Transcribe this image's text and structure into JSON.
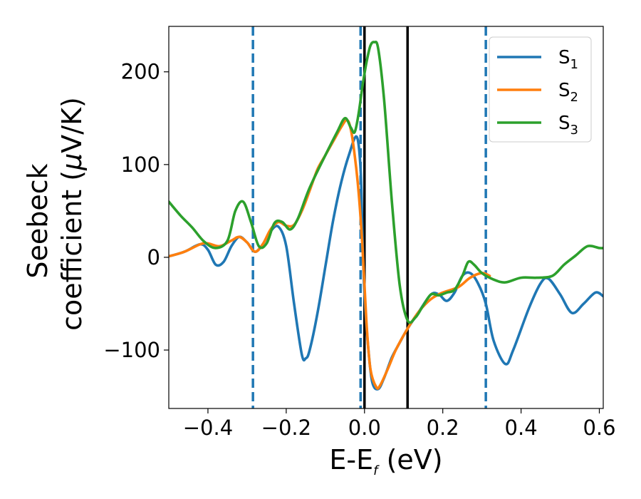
{
  "chart_data": {
    "type": "line",
    "xlabel_main": "E-E",
    "xlabel_sub": "f",
    "xlabel_unit": " (eV)",
    "ylabel_line1": "Seebeck",
    "ylabel_line2_prefix": "coefficient  (",
    "ylabel_mu": "μ",
    "ylabel_line2_suffix": "V/K)",
    "xlim": [
      -0.5,
      0.61
    ],
    "ylim": [
      -163,
      249
    ],
    "xticks": [
      -0.4,
      -0.2,
      0.0,
      0.2,
      0.4,
      0.6
    ],
    "xtick_labels": [
      "−0.4",
      "−0.2",
      "0.0",
      "0.2",
      "0.4",
      "0.6"
    ],
    "yticks": [
      -100,
      0,
      100,
      200
    ],
    "ytick_labels": [
      "−100",
      "0",
      "100",
      "200"
    ],
    "vlines_solid": [
      0.0,
      0.11
    ],
    "vlines_dashed": [
      -0.285,
      -0.01,
      0.31
    ],
    "legend_position": "top-right",
    "series": [
      {
        "name": "S",
        "sub": "1",
        "color": "#1f77b4",
        "points": [
          [
            -0.5,
            1
          ],
          [
            -0.46,
            6
          ],
          [
            -0.42,
            14
          ],
          [
            -0.4,
            8
          ],
          [
            -0.38,
            -8
          ],
          [
            -0.36,
            -5
          ],
          [
            -0.34,
            12
          ],
          [
            -0.32,
            22
          ],
          [
            -0.3,
            16
          ],
          [
            -0.28,
            6
          ],
          [
            -0.26,
            14
          ],
          [
            -0.24,
            28
          ],
          [
            -0.22,
            33
          ],
          [
            -0.2,
            12
          ],
          [
            -0.18,
            -50
          ],
          [
            -0.16,
            -105
          ],
          [
            -0.15,
            -109
          ],
          [
            -0.14,
            -100
          ],
          [
            -0.12,
            -60
          ],
          [
            -0.1,
            -10
          ],
          [
            -0.08,
            40
          ],
          [
            -0.06,
            80
          ],
          [
            -0.04,
            110
          ],
          [
            -0.02,
            130
          ],
          [
            -0.01,
            95
          ],
          [
            -0.005,
            20
          ],
          [
            0.0,
            -40
          ],
          [
            0.01,
            -100
          ],
          [
            0.02,
            -135
          ],
          [
            0.035,
            -142
          ],
          [
            0.05,
            -130
          ],
          [
            0.07,
            -108
          ],
          [
            0.09,
            -92
          ],
          [
            0.11,
            -77
          ],
          [
            0.14,
            -58
          ],
          [
            0.17,
            -40
          ],
          [
            0.19,
            -40
          ],
          [
            0.21,
            -47
          ],
          [
            0.23,
            -38
          ],
          [
            0.25,
            -20
          ],
          [
            0.27,
            -17
          ],
          [
            0.29,
            -28
          ],
          [
            0.31,
            -50
          ],
          [
            0.33,
            -90
          ],
          [
            0.36,
            -115
          ],
          [
            0.38,
            -100
          ],
          [
            0.42,
            -55
          ],
          [
            0.45,
            -28
          ],
          [
            0.47,
            -23
          ],
          [
            0.5,
            -40
          ],
          [
            0.53,
            -60
          ],
          [
            0.56,
            -50
          ],
          [
            0.59,
            -38
          ],
          [
            0.61,
            -42
          ]
        ]
      },
      {
        "name": "S",
        "sub": "2",
        "color": "#ff7f0e",
        "points": [
          [
            -0.5,
            1
          ],
          [
            -0.46,
            6
          ],
          [
            -0.42,
            14
          ],
          [
            -0.4,
            15
          ],
          [
            -0.37,
            12
          ],
          [
            -0.34,
            18
          ],
          [
            -0.32,
            22
          ],
          [
            -0.3,
            16
          ],
          [
            -0.28,
            6
          ],
          [
            -0.26,
            14
          ],
          [
            -0.24,
            30
          ],
          [
            -0.22,
            38
          ],
          [
            -0.2,
            34
          ],
          [
            -0.18,
            35
          ],
          [
            -0.16,
            50
          ],
          [
            -0.14,
            72
          ],
          [
            -0.12,
            95
          ],
          [
            -0.1,
            110
          ],
          [
            -0.08,
            125
          ],
          [
            -0.06,
            140
          ],
          [
            -0.045,
            148
          ],
          [
            -0.035,
            138
          ],
          [
            -0.025,
            110
          ],
          [
            -0.015,
            70
          ],
          [
            -0.005,
            10
          ],
          [
            0.005,
            -70
          ],
          [
            0.015,
            -120
          ],
          [
            0.03,
            -140
          ],
          [
            0.04,
            -138
          ],
          [
            0.06,
            -120
          ],
          [
            0.08,
            -100
          ],
          [
            0.11,
            -77
          ],
          [
            0.14,
            -58
          ],
          [
            0.17,
            -45
          ],
          [
            0.2,
            -38
          ],
          [
            0.24,
            -32
          ],
          [
            0.27,
            -22
          ],
          [
            0.3,
            -17
          ],
          [
            0.32,
            -20
          ]
        ]
      },
      {
        "name": "S",
        "sub": "3",
        "color": "#2ca02c",
        "points": [
          [
            -0.5,
            60
          ],
          [
            -0.47,
            45
          ],
          [
            -0.44,
            32
          ],
          [
            -0.41,
            17
          ],
          [
            -0.38,
            10
          ],
          [
            -0.35,
            18
          ],
          [
            -0.33,
            50
          ],
          [
            -0.31,
            60
          ],
          [
            -0.29,
            38
          ],
          [
            -0.27,
            12
          ],
          [
            -0.25,
            15
          ],
          [
            -0.23,
            37
          ],
          [
            -0.21,
            38
          ],
          [
            -0.19,
            30
          ],
          [
            -0.17,
            42
          ],
          [
            -0.14,
            75
          ],
          [
            -0.1,
            110
          ],
          [
            -0.07,
            135
          ],
          [
            -0.05,
            150
          ],
          [
            -0.035,
            140
          ],
          [
            -0.025,
            135
          ],
          [
            -0.015,
            155
          ],
          [
            -0.005,
            185
          ],
          [
            0.005,
            210
          ],
          [
            0.015,
            228
          ],
          [
            0.025,
            232
          ],
          [
            0.035,
            225
          ],
          [
            0.05,
            170
          ],
          [
            0.07,
            60
          ],
          [
            0.09,
            -30
          ],
          [
            0.11,
            -68
          ],
          [
            0.13,
            -65
          ],
          [
            0.15,
            -52
          ],
          [
            0.17,
            -40
          ],
          [
            0.19,
            -41
          ],
          [
            0.21,
            -38
          ],
          [
            0.23,
            -35
          ],
          [
            0.25,
            -20
          ],
          [
            0.265,
            -5
          ],
          [
            0.28,
            -8
          ],
          [
            0.3,
            -17
          ],
          [
            0.33,
            -24
          ],
          [
            0.36,
            -27
          ],
          [
            0.4,
            -22
          ],
          [
            0.44,
            -22
          ],
          [
            0.48,
            -20
          ],
          [
            0.51,
            -8
          ],
          [
            0.54,
            2
          ],
          [
            0.57,
            12
          ],
          [
            0.6,
            10
          ],
          [
            0.61,
            10
          ]
        ]
      }
    ]
  }
}
